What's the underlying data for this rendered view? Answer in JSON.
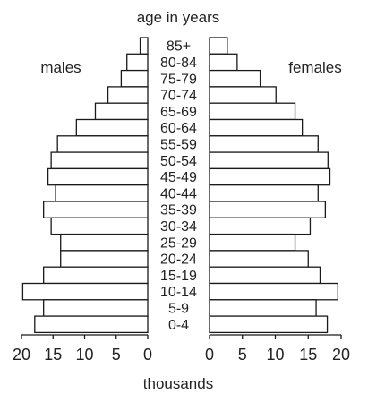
{
  "chart_data": {
    "type": "bar",
    "subtype": "population-pyramid",
    "title": "age in years",
    "xlabel": "thousands",
    "categories": [
      "85+",
      "80-84",
      "75-79",
      "70-74",
      "65-69",
      "60-64",
      "55-59",
      "50-54",
      "45-49",
      "40-44",
      "35-39",
      "30-34",
      "25-29",
      "20-24",
      "15-19",
      "10-14",
      "5-9",
      "0-4"
    ],
    "series": [
      {
        "name": "males",
        "values": [
          1.2,
          3.3,
          4.2,
          6.3,
          8.3,
          11.3,
          14.3,
          15.3,
          15.8,
          14.6,
          16.5,
          15.3,
          13.8,
          13.8,
          16.5,
          19.8,
          16.5,
          17.9
        ]
      },
      {
        "name": "females",
        "values": [
          2.7,
          4.2,
          7.7,
          10.1,
          13.0,
          14.1,
          16.5,
          18.0,
          18.3,
          16.5,
          17.6,
          15.3,
          13.0,
          15.0,
          16.8,
          19.5,
          16.2,
          17.9
        ]
      }
    ],
    "xlim": [
      0,
      20
    ],
    "xticks": [
      "20",
      "15",
      "10",
      "5",
      "0"
    ],
    "xticks_right": [
      "0",
      "5",
      "10",
      "15",
      "20"
    ],
    "grid": false,
    "legend": "none"
  },
  "colors": {
    "bar_fill": "#ffffff",
    "bar_stroke": "#1a1a1a",
    "axis": "#1a1a1a",
    "text": "#222222"
  }
}
